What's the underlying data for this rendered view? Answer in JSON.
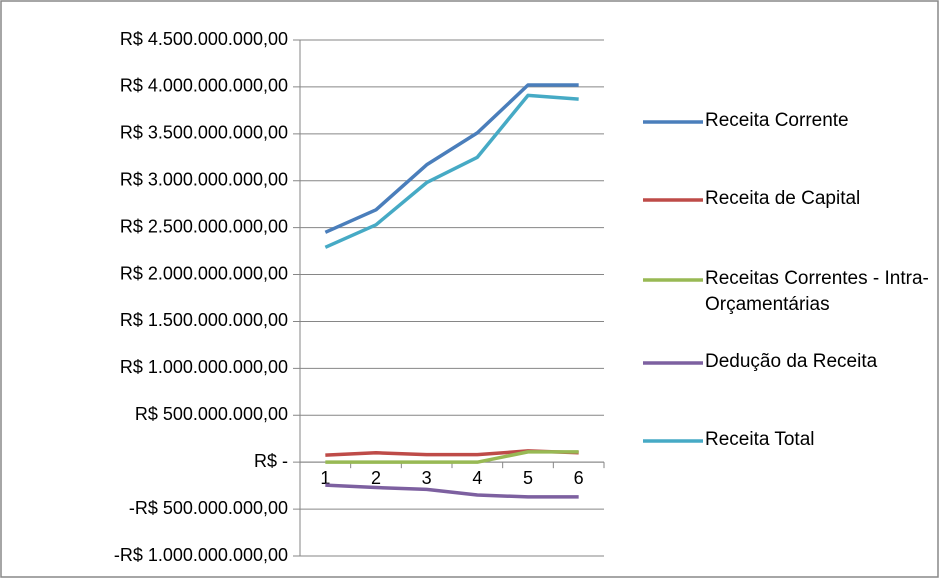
{
  "chart_data": {
    "type": "line",
    "categories": [
      "1",
      "2",
      "3",
      "4",
      "5",
      "6"
    ],
    "series": [
      {
        "name": "Receita Corrente",
        "color": "#4a7ebb",
        "values": [
          2450000000,
          2690000000,
          3170000000,
          3510000000,
          4020000000,
          4020000000
        ]
      },
      {
        "name": "Receita de Capital",
        "color": "#be4b48",
        "values": [
          75000000,
          100000000,
          80000000,
          80000000,
          120000000,
          100000000
        ]
      },
      {
        "name": "Receitas Correntes - Intra-Orçamentárias",
        "color": "#98b954",
        "values": [
          0,
          0,
          0,
          0,
          110000000,
          110000000
        ]
      },
      {
        "name": "Dedução da Receita",
        "color": "#7d60a0",
        "values": [
          -245000000,
          -270000000,
          -290000000,
          -350000000,
          -370000000,
          -370000000
        ]
      },
      {
        "name": "Receita Total",
        "color": "#46aac5",
        "values": [
          2290000000,
          2530000000,
          2980000000,
          3250000000,
          3910000000,
          3870000000
        ]
      }
    ],
    "ylim": [
      -1000000000,
      4500000000
    ],
    "yticks": [
      {
        "value": -1000000000,
        "label": "-R$ 1.000.000.000,00"
      },
      {
        "value": -500000000,
        "label": "-R$ 500.000.000,00"
      },
      {
        "value": 0,
        "label": "R$ -"
      },
      {
        "value": 500000000,
        "label": "R$ 500.000.000,00"
      },
      {
        "value": 1000000000,
        "label": "R$ 1.000.000.000,00"
      },
      {
        "value": 1500000000,
        "label": "R$ 1.500.000.000,00"
      },
      {
        "value": 2000000000,
        "label": "R$ 2.000.000.000,00"
      },
      {
        "value": 2500000000,
        "label": "R$ 2.500.000.000,00"
      },
      {
        "value": 3000000000,
        "label": "R$ 3.000.000.000,00"
      },
      {
        "value": 3500000000,
        "label": "R$ 3.500.000.000,00"
      },
      {
        "value": 4000000000,
        "label": "R$ 4.000.000.000,00"
      },
      {
        "value": 4500000000,
        "label": "R$ 4.500.000.000,00"
      }
    ],
    "grid": true,
    "legend": "right"
  }
}
